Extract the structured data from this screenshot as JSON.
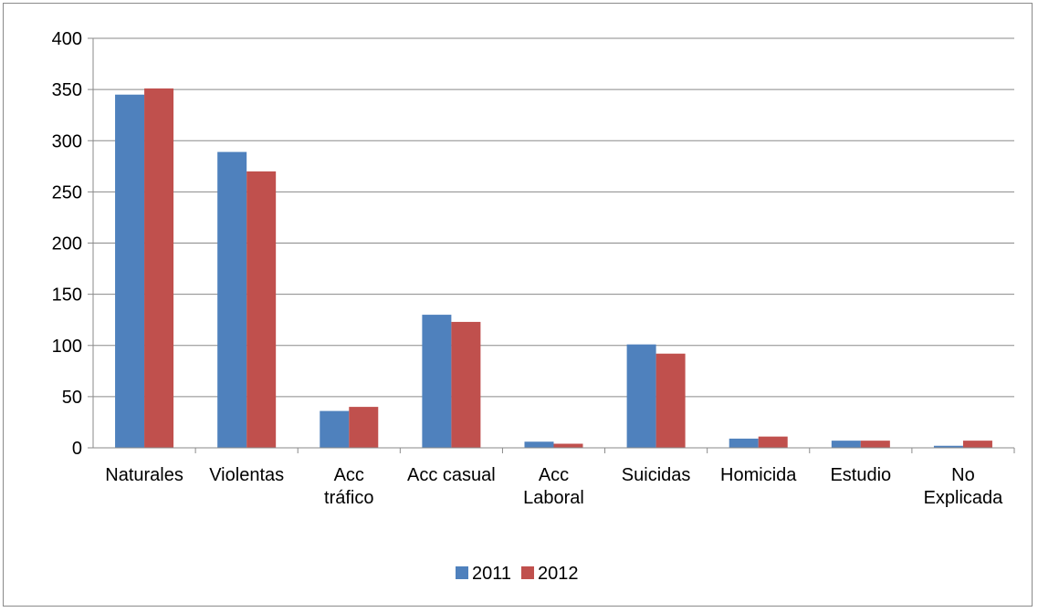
{
  "chart_data": {
    "type": "bar",
    "title": "",
    "xlabel": "",
    "ylabel": "",
    "categories": [
      [
        "Naturales"
      ],
      [
        "Violentas"
      ],
      [
        "Acc",
        "tráfico"
      ],
      [
        "Acc casual"
      ],
      [
        "Acc",
        "Laboral"
      ],
      [
        "Suicidas"
      ],
      [
        "Homicida"
      ],
      [
        "Estudio"
      ],
      [
        "No",
        "Explicada"
      ]
    ],
    "series": [
      {
        "name": "2011",
        "color": "#4f81bd",
        "values": [
          345,
          289,
          36,
          130,
          6,
          101,
          9,
          7,
          2
        ]
      },
      {
        "name": "2012",
        "color": "#c0504d",
        "values": [
          351,
          270,
          40,
          123,
          4,
          92,
          11,
          7,
          7
        ]
      }
    ],
    "ylim": [
      0,
      400
    ],
    "yticks": [
      0,
      50,
      100,
      150,
      200,
      250,
      300,
      350,
      400
    ],
    "grid": true,
    "legend_position": "bottom"
  }
}
